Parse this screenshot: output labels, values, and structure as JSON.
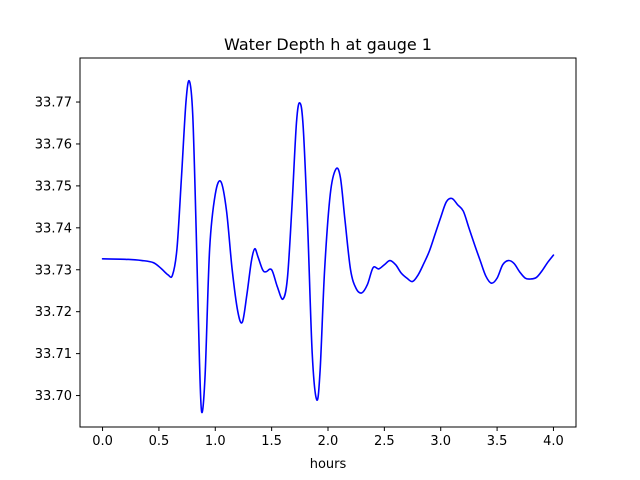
{
  "chart_data": {
    "type": "line",
    "title": "Water Depth h at gauge 1",
    "xlabel": "hours",
    "ylabel": "",
    "xlim": [
      -0.2,
      4.2
    ],
    "ylim": [
      33.6925,
      33.7805
    ],
    "xticks": [
      0.0,
      0.5,
      1.0,
      1.5,
      2.0,
      2.5,
      3.0,
      3.5,
      4.0
    ],
    "xtick_labels": [
      "0.0",
      "0.5",
      "1.0",
      "1.5",
      "2.0",
      "2.5",
      "3.0",
      "3.5",
      "4.0"
    ],
    "yticks": [
      33.7,
      33.71,
      33.72,
      33.73,
      33.74,
      33.75,
      33.76,
      33.77
    ],
    "ytick_labels": [
      "33.70",
      "33.71",
      "33.72",
      "33.73",
      "33.74",
      "33.75",
      "33.76",
      "33.77"
    ],
    "grid": false,
    "series": [
      {
        "color": "#0000ff",
        "points": [
          [
            0.0,
            33.7326
          ],
          [
            0.2,
            33.7325
          ],
          [
            0.35,
            33.7322
          ],
          [
            0.45,
            33.7317
          ],
          [
            0.52,
            33.7303
          ],
          [
            0.58,
            33.7288
          ],
          [
            0.62,
            33.7287
          ],
          [
            0.66,
            33.735
          ],
          [
            0.7,
            33.752
          ],
          [
            0.74,
            33.77
          ],
          [
            0.77,
            33.775
          ],
          [
            0.8,
            33.767
          ],
          [
            0.83,
            33.74
          ],
          [
            0.86,
            33.708
          ],
          [
            0.88,
            33.696
          ],
          [
            0.91,
            33.705
          ],
          [
            0.95,
            33.735
          ],
          [
            1.0,
            33.748
          ],
          [
            1.05,
            33.751
          ],
          [
            1.1,
            33.744
          ],
          [
            1.15,
            33.73
          ],
          [
            1.2,
            33.72
          ],
          [
            1.24,
            33.7175
          ],
          [
            1.28,
            33.724
          ],
          [
            1.32,
            33.732
          ],
          [
            1.35,
            33.735
          ],
          [
            1.38,
            33.733
          ],
          [
            1.42,
            33.73
          ],
          [
            1.45,
            33.7295
          ],
          [
            1.5,
            33.73
          ],
          [
            1.55,
            33.726
          ],
          [
            1.6,
            33.723
          ],
          [
            1.64,
            33.728
          ],
          [
            1.68,
            33.745
          ],
          [
            1.72,
            33.765
          ],
          [
            1.75,
            33.7698
          ],
          [
            1.78,
            33.764
          ],
          [
            1.82,
            33.74
          ],
          [
            1.86,
            33.71
          ],
          [
            1.9,
            33.699
          ],
          [
            1.93,
            33.706
          ],
          [
            1.97,
            33.73
          ],
          [
            2.02,
            33.748
          ],
          [
            2.07,
            33.754
          ],
          [
            2.11,
            33.752
          ],
          [
            2.15,
            33.742
          ],
          [
            2.2,
            33.73
          ],
          [
            2.25,
            33.7255
          ],
          [
            2.3,
            33.7245
          ],
          [
            2.35,
            33.7265
          ],
          [
            2.4,
            33.7305
          ],
          [
            2.45,
            33.7302
          ],
          [
            2.5,
            33.7312
          ],
          [
            2.55,
            33.7322
          ],
          [
            2.6,
            33.7312
          ],
          [
            2.65,
            33.7292
          ],
          [
            2.7,
            33.728
          ],
          [
            2.75,
            33.7272
          ],
          [
            2.8,
            33.7288
          ],
          [
            2.85,
            33.7315
          ],
          [
            2.9,
            33.7345
          ],
          [
            2.95,
            33.7385
          ],
          [
            3.0,
            33.7425
          ],
          [
            3.05,
            33.7462
          ],
          [
            3.1,
            33.747
          ],
          [
            3.15,
            33.7455
          ],
          [
            3.2,
            33.744
          ],
          [
            3.25,
            33.74
          ],
          [
            3.3,
            33.736
          ],
          [
            3.35,
            33.7322
          ],
          [
            3.4,
            33.7285
          ],
          [
            3.45,
            33.7268
          ],
          [
            3.5,
            33.728
          ],
          [
            3.55,
            33.7312
          ],
          [
            3.6,
            33.7322
          ],
          [
            3.65,
            33.7315
          ],
          [
            3.7,
            33.7295
          ],
          [
            3.75,
            33.728
          ],
          [
            3.8,
            33.7278
          ],
          [
            3.85,
            33.7282
          ],
          [
            3.9,
            33.7298
          ],
          [
            3.95,
            33.7318
          ],
          [
            4.0,
            33.7335
          ]
        ]
      }
    ]
  }
}
